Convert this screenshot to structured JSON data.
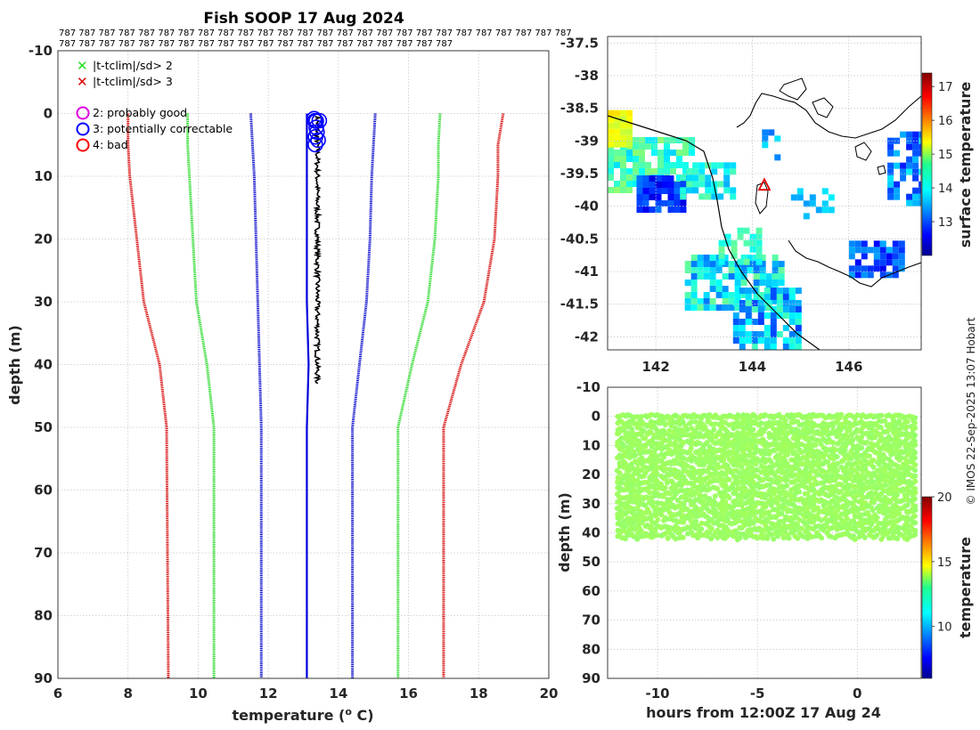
{
  "title": "Fish SOOP 17 Aug 2024",
  "id_rows": [
    "787 787 787 787 787 787 787 787 787 787 787 787 787 787 787 787 787 787 787 787 787 787 787 787 787 787",
    "787 787 787 787 787 787 787 787 787 787 787 787 787 787 787 787 787 787 787 787"
  ],
  "credit": "© IMOS 22-Sep-2025 13:07 Hobart",
  "colors": {
    "sd3": "#d40000",
    "sd2": "#22d822",
    "sd1": "#0000c8",
    "profile": "#000000",
    "flag_good": "#e000e0",
    "flag_correctable": "#0000ff",
    "flag_bad": "#ff0000",
    "marker_sd2": "#22dd22",
    "marker_sd3": "#dd0000"
  },
  "legend": {
    "cross_sd2": "|t-tclim|/sd> 2",
    "cross_sd3": "|t-tclim|/sd> 3",
    "flag_good": "2: probably good",
    "flag_correctable": "3: potentially correctable",
    "flag_bad": "4: bad"
  },
  "chart_data": [
    {
      "type": "line",
      "name": "profile",
      "xlabel": "temperature (",
      "xlabel_sup": "o",
      "xlabel_tail": " C)",
      "ylabel": "depth (m)",
      "xlim": [
        6,
        20
      ],
      "ylim": [
        -10,
        90
      ],
      "xticks": [
        6,
        8,
        10,
        12,
        14,
        16,
        18,
        20
      ],
      "yticks": [
        -10,
        0,
        10,
        20,
        30,
        40,
        50,
        60,
        70,
        80,
        90
      ],
      "series": [
        {
          "name": "clim - 3sd",
          "depth": [
            0,
            5,
            10,
            20,
            30,
            40,
            50,
            90
          ],
          "temp": [
            8.0,
            8.0,
            8.05,
            8.25,
            8.45,
            8.9,
            9.1,
            9.15
          ]
        },
        {
          "name": "clim - 2sd",
          "depth": [
            0,
            5,
            10,
            20,
            30,
            40,
            50,
            90
          ],
          "temp": [
            9.7,
            9.7,
            9.75,
            9.85,
            9.95,
            10.25,
            10.45,
            10.45
          ]
        },
        {
          "name": "clim - 1sd",
          "depth": [
            0,
            5,
            10,
            20,
            30,
            40,
            50,
            90
          ],
          "temp": [
            11.5,
            11.55,
            11.6,
            11.65,
            11.7,
            11.75,
            11.8,
            11.8
          ]
        },
        {
          "name": "clim + 1sd",
          "depth": [
            0,
            5,
            10,
            20,
            30,
            40,
            50,
            90
          ],
          "temp": [
            15.05,
            15.0,
            14.95,
            14.9,
            14.8,
            14.6,
            14.4,
            14.4
          ]
        },
        {
          "name": "clim + 2sd",
          "depth": [
            0,
            5,
            10,
            20,
            30,
            40,
            50,
            90
          ],
          "temp": [
            16.9,
            16.85,
            16.85,
            16.75,
            16.55,
            16.1,
            15.7,
            15.7
          ]
        },
        {
          "name": "clim + 3sd",
          "depth": [
            0,
            5,
            10,
            20,
            30,
            40,
            50,
            90
          ],
          "temp": [
            18.7,
            18.55,
            18.55,
            18.45,
            18.15,
            17.5,
            17.0,
            17.0
          ]
        },
        {
          "name": "mean profile",
          "depth": [
            0,
            5,
            10,
            20,
            30,
            40,
            50,
            58,
            90
          ],
          "temp": [
            13.1,
            13.1,
            13.1,
            13.1,
            13.1,
            13.15,
            13.1,
            13.1,
            13.1
          ]
        },
        {
          "name": "fish temperature",
          "depth": [
            0.5,
            3,
            10,
            20,
            30,
            40,
            43
          ],
          "temp": [
            13.35,
            13.4,
            13.4,
            13.4,
            13.42,
            13.42,
            13.4
          ]
        }
      ]
    },
    {
      "type": "heatmap",
      "name": "map",
      "xlim": [
        141,
        147.5
      ],
      "ylim": [
        -42.2,
        -37.4
      ],
      "xticks": [
        142,
        144,
        146
      ],
      "yticks": [
        -37.5,
        -38,
        -38.5,
        -39,
        -39.5,
        -40,
        -40.5,
        -41,
        -41.5,
        -42
      ],
      "colorbar_label": "surface temperature",
      "colorbar_ticks": [
        13,
        14,
        15,
        16,
        17
      ],
      "colorbar_range": [
        12.0,
        17.4
      ],
      "marker": {
        "lon": 144.25,
        "lat": -39.68,
        "symbol": "triangle"
      }
    },
    {
      "type": "scatter",
      "name": "timeseries",
      "xlabel": "hours from 12:00Z 17 Aug 24",
      "ylabel": "depth (m)",
      "xlim": [
        -12.5,
        3.2
      ],
      "ylim": [
        -10,
        90
      ],
      "xticks": [
        -10,
        -5,
        0
      ],
      "yticks": [
        -10,
        0,
        10,
        20,
        30,
        40,
        50,
        60,
        70,
        80,
        90
      ],
      "colorbar_label": "temperature",
      "colorbar_ticks": [
        10,
        15,
        20
      ],
      "colorbar_range": [
        6,
        20
      ],
      "time_range": [
        -12.0,
        2.9
      ],
      "depth_range": [
        0,
        42
      ]
    }
  ]
}
